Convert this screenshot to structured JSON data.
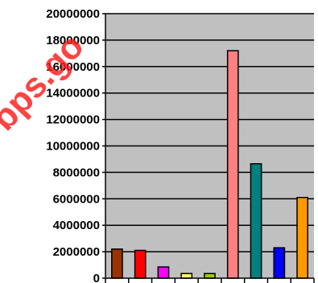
{
  "chart_data": {
    "type": "bar",
    "categories": [
      "",
      "",
      "",
      "",
      "",
      "",
      "",
      "",
      ""
    ],
    "values": [
      2200000,
      2100000,
      850000,
      350000,
      350000,
      17200000,
      8650000,
      2300000,
      6100000
    ],
    "colors": [
      "#993300",
      "#ff0000",
      "#ff00ff",
      "#ffff66",
      "#99cc00",
      "#ff8080",
      "#008080",
      "#0000ff",
      "#ff9900"
    ],
    "title": "",
    "xlabel": "",
    "ylabel": "",
    "ylim": [
      0,
      20000000
    ],
    "yticks": [
      0,
      2000000,
      4000000,
      6000000,
      8000000,
      10000000,
      12000000,
      14000000,
      16000000,
      18000000,
      20000000
    ],
    "ytick_labels": [
      "0",
      "2000000",
      "4000000",
      "6000000",
      "8000000",
      "10000000",
      "12000000",
      "14000000",
      "16000000",
      "18000000",
      "20000000"
    ],
    "grid": true,
    "plot_background": "#c0c0c0",
    "watermark": "bps.go"
  }
}
